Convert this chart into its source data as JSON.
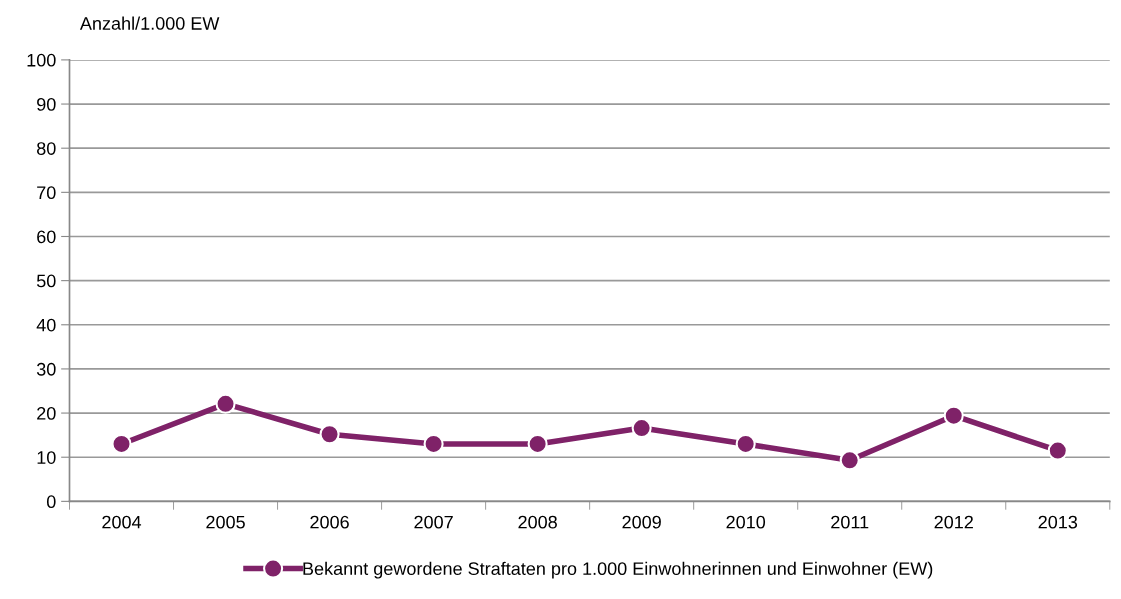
{
  "chart_data": {
    "type": "line",
    "ylabel": "Anzahl/1.000 EW",
    "categories": [
      "2004",
      "2005",
      "2006",
      "2007",
      "2008",
      "2009",
      "2010",
      "2011",
      "2012",
      "2013"
    ],
    "series": [
      {
        "name": "Bekannt gewordene Straftaten pro 1.000 Einwohnerinnen und Einwohner (EW)",
        "color": "#7f2268",
        "values": [
          13.0,
          22.1,
          15.2,
          13.0,
          13.0,
          16.6,
          13.0,
          9.3,
          19.4,
          11.5
        ]
      }
    ],
    "ylim": [
      0,
      100
    ],
    "yticks": [
      0,
      10,
      20,
      30,
      40,
      50,
      60,
      70,
      80,
      90,
      100
    ],
    "grid": "y",
    "legend": "bottom",
    "marker": "circle",
    "line_style": "solid"
  }
}
